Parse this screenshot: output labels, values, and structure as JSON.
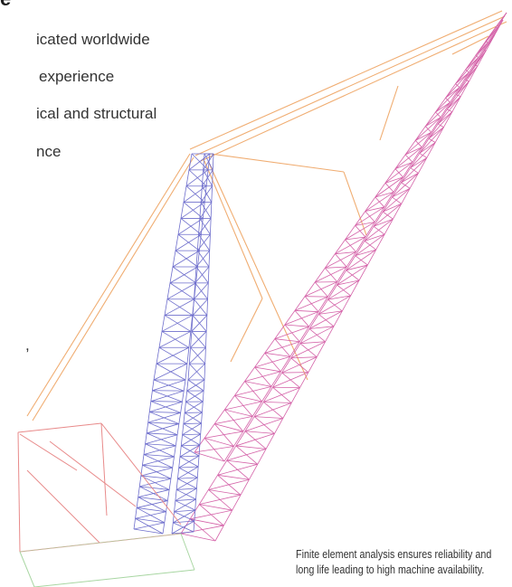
{
  "heading_fragment": "e",
  "body_lines": [
    "icated worldwide",
    "experience",
    "ical and structural",
    "nce",
    ","
  ],
  "figure": {
    "colors": {
      "boom": "#d462a8",
      "mast": "#6e6ecc",
      "pendant": "#f0ad72",
      "base": "#e88a8a",
      "ground": "#a8d6a2"
    }
  },
  "caption": {
    "line1": "Finite element analysis ensures reliability and",
    "line2": "long life leading to high machine availability."
  }
}
